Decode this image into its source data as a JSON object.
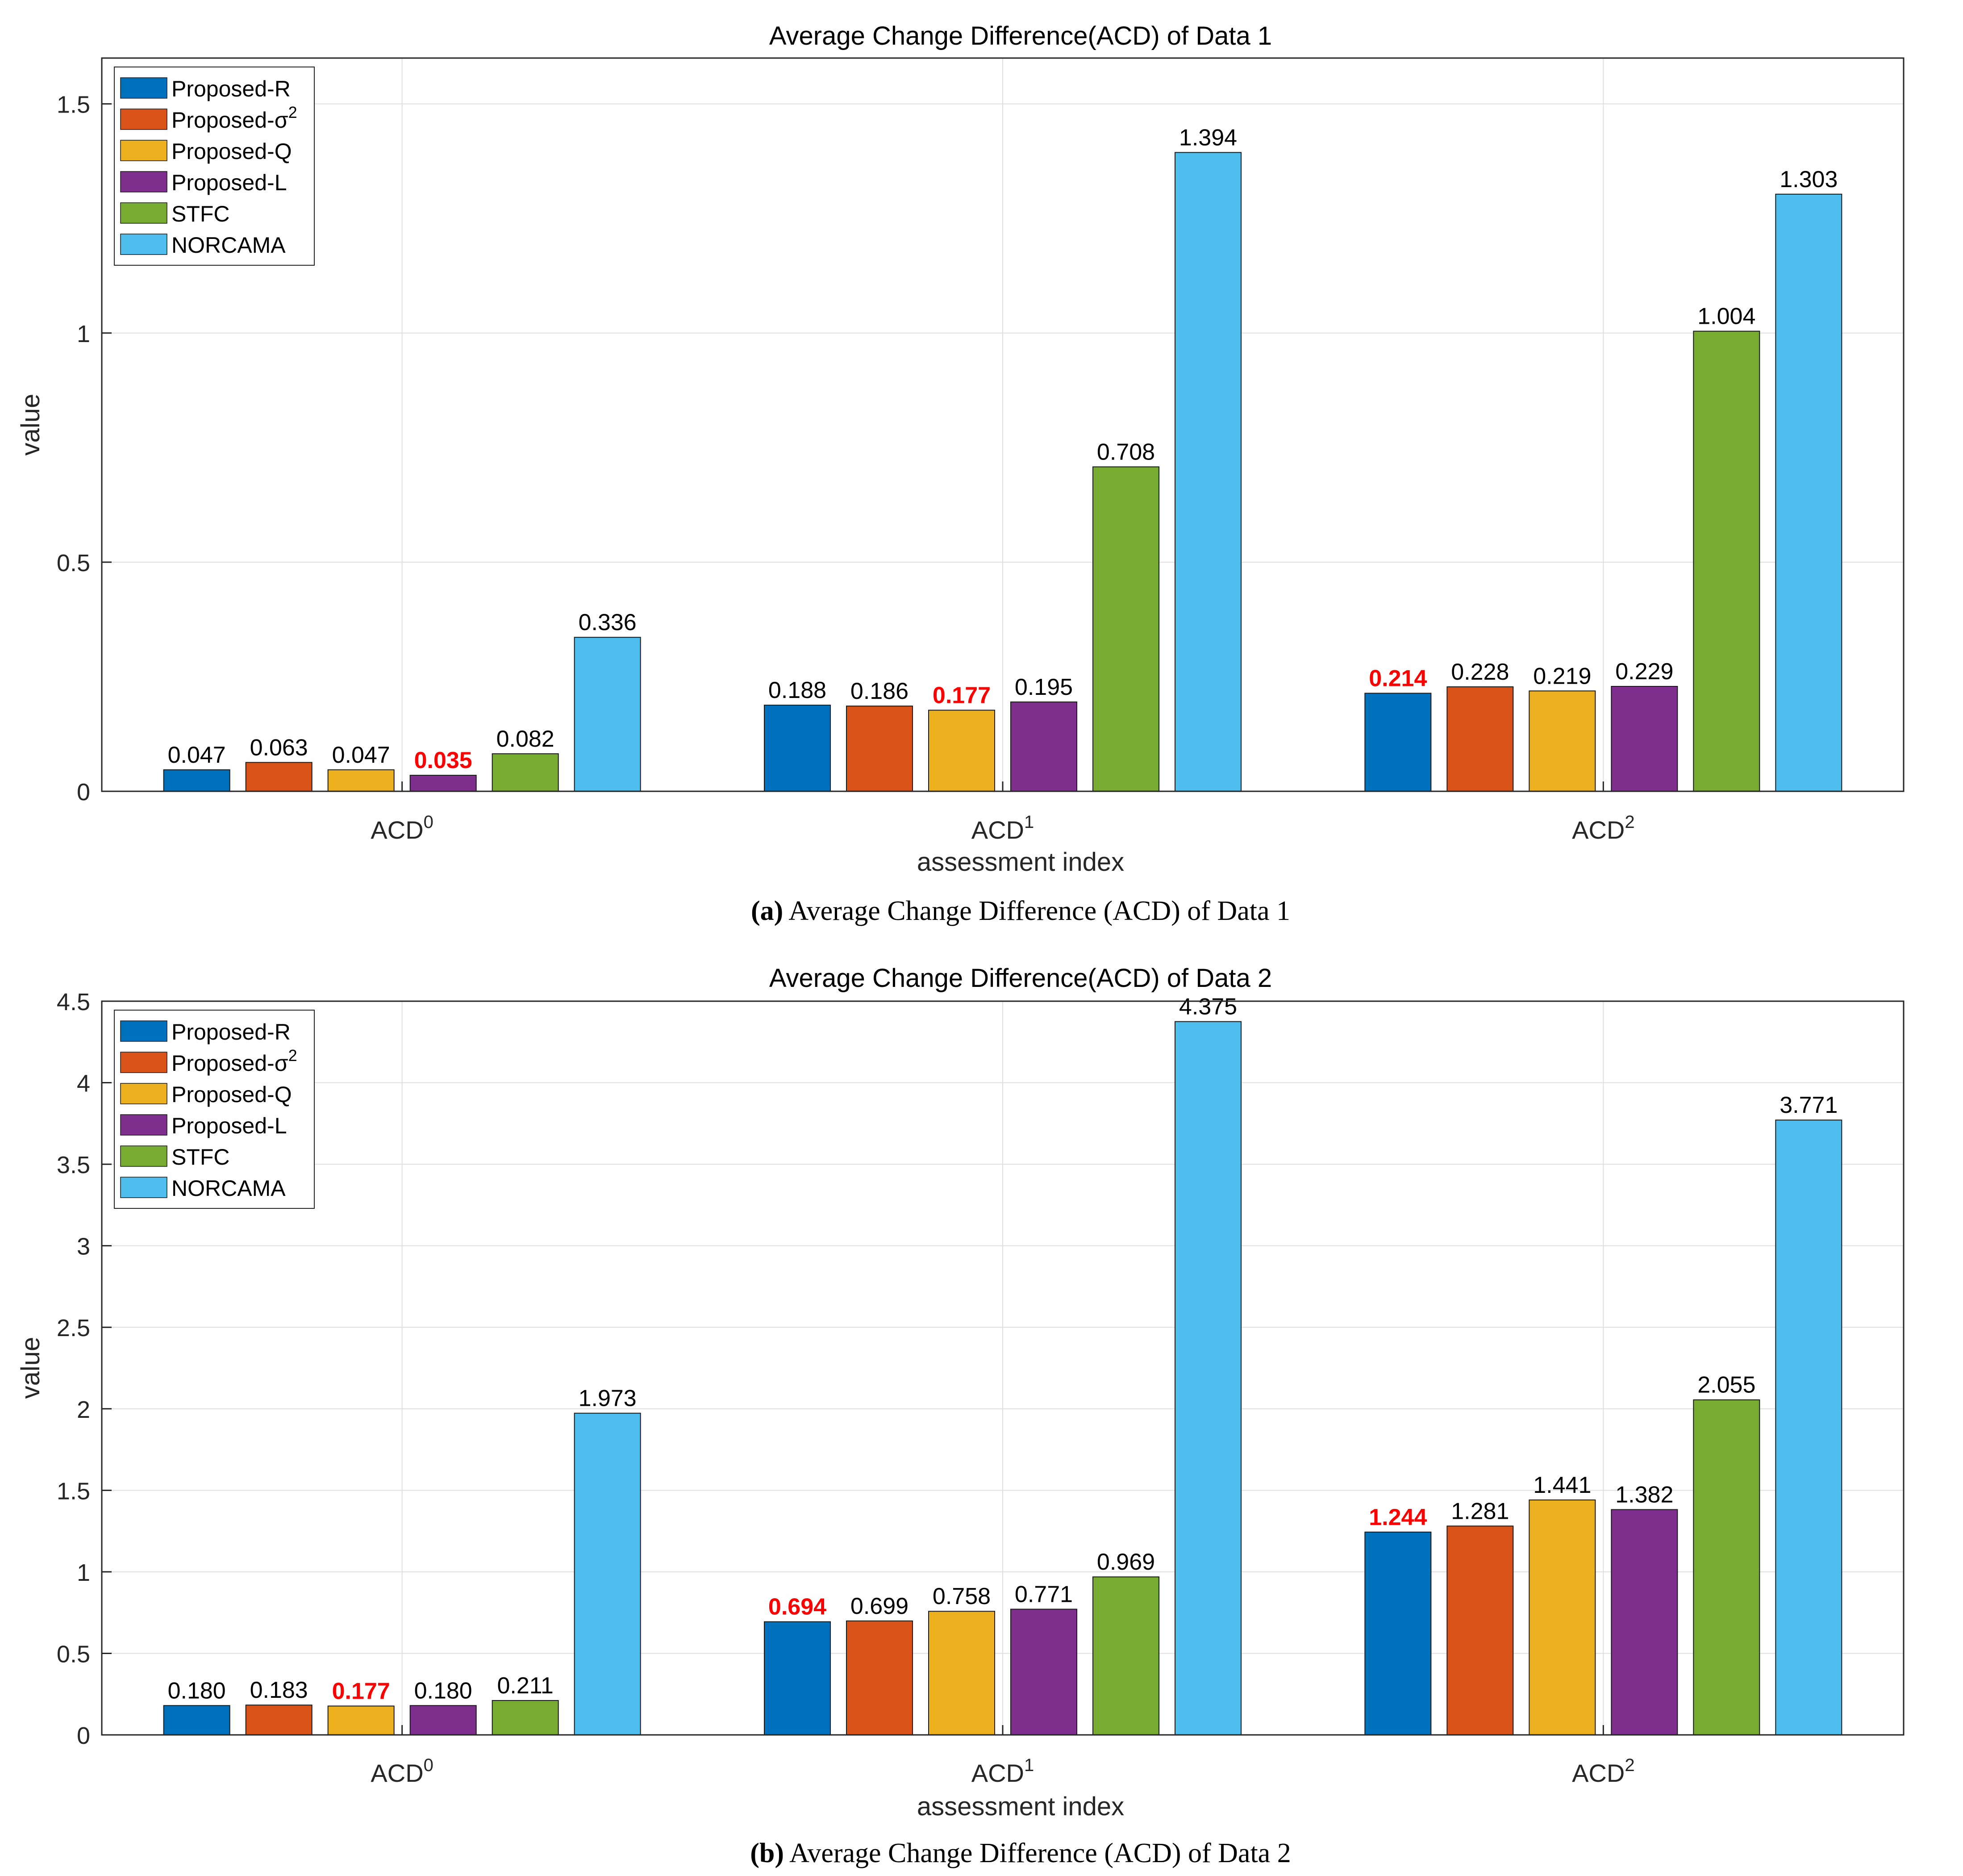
{
  "colors": {
    "series": [
      "#0072BD",
      "#D95319",
      "#EDB120",
      "#7E2F8E",
      "#77AC30",
      "#4DBEEE"
    ],
    "highlight_label": "#FF0000",
    "grid": "#DFDFDF",
    "axis": "#262626"
  },
  "charts": [
    {
      "title": "Average Change Difference(ACD) of Data 1",
      "xlabel": "assessment index",
      "ylabel": "value",
      "caption_letter": "(a)",
      "caption_text": "Average Change Difference (ACD) of Data 1",
      "ticks": [
        "0",
        "0.5",
        "1",
        "1.5"
      ]
    },
    {
      "title": "Average Change Difference(ACD) of Data 2",
      "xlabel": "assessment index",
      "ylabel": "value",
      "caption_letter": "(b)",
      "caption_text": "Average Change Difference (ACD) of Data 2",
      "ticks": [
        "0",
        "0.5",
        "1",
        "1.5",
        "2",
        "2.5",
        "3",
        "3.5",
        "4",
        "4.5"
      ]
    }
  ],
  "chart_data": [
    {
      "type": "bar",
      "title": "Average Change Difference(ACD) of Data 1",
      "xlabel": "assessment index",
      "ylabel": "value",
      "ylim": [
        0,
        1.6
      ],
      "yticks": [
        0,
        0.5,
        1,
        1.5
      ],
      "grid": true,
      "legend_position": "top-left",
      "categories": [
        {
          "base": "ACD",
          "sup": "0"
        },
        {
          "base": "ACD",
          "sup": "1"
        },
        {
          "base": "ACD",
          "sup": "2"
        }
      ],
      "series": [
        {
          "name": "Proposed-R",
          "sup": "",
          "values": [
            0.047,
            0.188,
            0.214
          ],
          "labels": [
            "0.047",
            "0.188",
            "0.214"
          ]
        },
        {
          "name": "Proposed-σ",
          "sup": "2",
          "values": [
            0.063,
            0.186,
            0.228
          ],
          "labels": [
            "0.063",
            "0.186",
            "0.228"
          ]
        },
        {
          "name": "Proposed-Q",
          "sup": "",
          "values": [
            0.047,
            0.177,
            0.219
          ],
          "labels": [
            "0.047",
            "0.177",
            "0.219"
          ]
        },
        {
          "name": "Proposed-L",
          "sup": "",
          "values": [
            0.035,
            0.195,
            0.229
          ],
          "labels": [
            "0.035",
            "0.195",
            "0.229"
          ]
        },
        {
          "name": "STFC",
          "sup": "",
          "values": [
            0.082,
            0.708,
            1.004
          ],
          "labels": [
            "0.082",
            "0.708",
            "1.004"
          ]
        },
        {
          "name": "NORCAMA",
          "sup": "",
          "values": [
            0.336,
            1.394,
            1.303
          ],
          "labels": [
            "0.336",
            "1.394",
            "1.303"
          ]
        }
      ],
      "highlighted": [
        [
          3,
          0
        ],
        [
          2,
          1
        ],
        [
          0,
          2
        ]
      ]
    },
    {
      "type": "bar",
      "title": "Average Change Difference(ACD) of Data 2",
      "xlabel": "assessment index",
      "ylabel": "value",
      "ylim": [
        0,
        4.5
      ],
      "yticks": [
        0,
        0.5,
        1,
        1.5,
        2,
        2.5,
        3,
        3.5,
        4,
        4.5
      ],
      "grid": true,
      "legend_position": "top-left",
      "categories": [
        {
          "base": "ACD",
          "sup": "0"
        },
        {
          "base": "ACD",
          "sup": "1"
        },
        {
          "base": "ACD",
          "sup": "2"
        }
      ],
      "series": [
        {
          "name": "Proposed-R",
          "sup": "",
          "values": [
            0.18,
            0.694,
            1.244
          ],
          "labels": [
            "0.180",
            "0.694",
            "1.244"
          ]
        },
        {
          "name": "Proposed-σ",
          "sup": "2",
          "values": [
            0.183,
            0.699,
            1.281
          ],
          "labels": [
            "0.183",
            "0.699",
            "1.281"
          ]
        },
        {
          "name": "Proposed-Q",
          "sup": "",
          "values": [
            0.177,
            0.758,
            1.441
          ],
          "labels": [
            "0.177",
            "0.758",
            "1.441"
          ]
        },
        {
          "name": "Proposed-L",
          "sup": "",
          "values": [
            0.18,
            0.771,
            1.382
          ],
          "labels": [
            "0.180",
            "0.771",
            "1.382"
          ]
        },
        {
          "name": "STFC",
          "sup": "",
          "values": [
            0.211,
            0.969,
            2.055
          ],
          "labels": [
            "0.211",
            "0.969",
            "2.055"
          ]
        },
        {
          "name": "NORCAMA",
          "sup": "",
          "values": [
            1.973,
            4.375,
            3.771
          ],
          "labels": [
            "1.973",
            "4.375",
            "3.771"
          ]
        }
      ],
      "highlighted": [
        [
          2,
          0
        ],
        [
          0,
          1
        ],
        [
          0,
          2
        ]
      ]
    }
  ]
}
